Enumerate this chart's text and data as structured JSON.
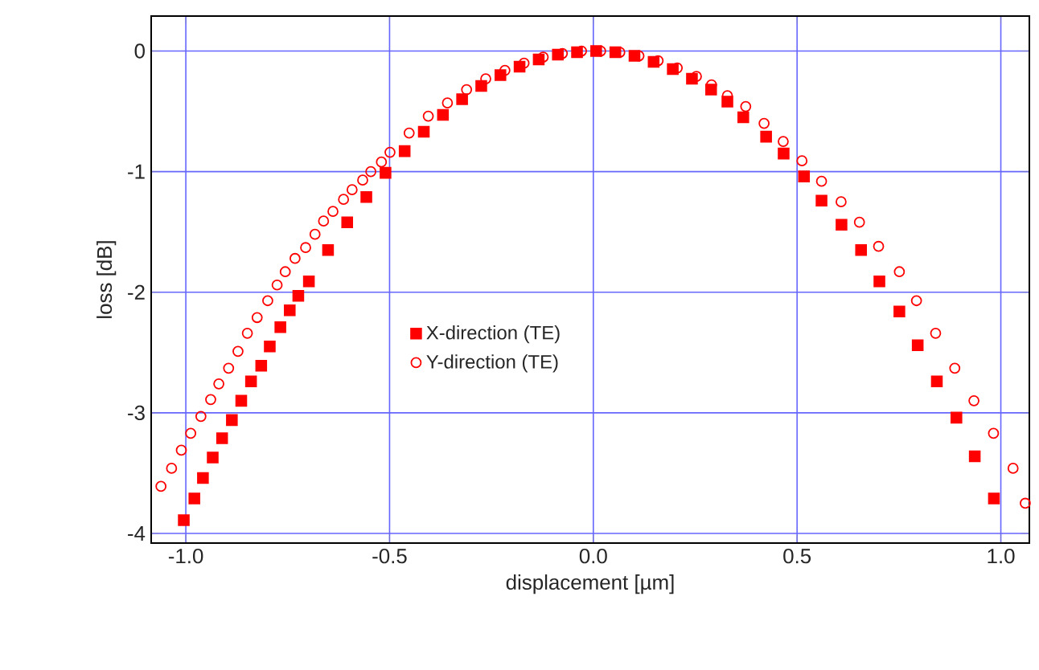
{
  "chart_data": {
    "type": "scatter",
    "xlabel": "displacement [µm]",
    "ylabel": "loss [dB]",
    "xlim": [
      -1.085,
      1.07
    ],
    "ylim": [
      -4.08,
      0.29
    ],
    "xticks": [
      {
        "value": -1,
        "label": "-1.0"
      },
      {
        "value": -0.5,
        "label": "-0.5"
      },
      {
        "value": 0,
        "label": "0.0"
      },
      {
        "value": 0.5,
        "label": "0.5"
      },
      {
        "value": 1,
        "label": "1.0"
      }
    ],
    "yticks": [
      -4,
      -3,
      -2,
      -1,
      0
    ],
    "grid": true,
    "legend": "center",
    "series": [
      {
        "name": "X-direction (TE)",
        "color": "#ff0000",
        "marker": "square",
        "x": [
          -1.005,
          -0.979,
          -0.958,
          -0.934,
          -0.911,
          -0.887,
          -0.864,
          -0.84,
          -0.815,
          -0.794,
          -0.768,
          -0.745,
          -0.724,
          -0.698,
          -0.651,
          -0.604,
          -0.557,
          -0.51,
          -0.463,
          -0.416,
          -0.369,
          -0.322,
          -0.275,
          -0.228,
          -0.181,
          -0.134,
          -0.087,
          -0.04,
          0.007,
          0.054,
          0.101,
          0.148,
          0.195,
          0.242,
          0.289,
          0.329,
          0.368,
          0.424,
          0.467,
          0.517,
          0.56,
          0.609,
          0.657,
          0.702,
          0.751,
          0.796,
          0.843,
          0.891,
          0.936,
          0.983
        ],
        "values": [
          -3.89,
          -3.71,
          -3.54,
          -3.37,
          -3.21,
          -3.06,
          -2.9,
          -2.74,
          -2.61,
          -2.45,
          -2.29,
          -2.15,
          -2.03,
          -1.91,
          -1.65,
          -1.42,
          -1.21,
          -1.01,
          -0.83,
          -0.67,
          -0.53,
          -0.4,
          -0.29,
          -0.2,
          -0.13,
          -0.07,
          -0.03,
          -0.01,
          0,
          -0.01,
          -0.04,
          -0.09,
          -0.15,
          -0.23,
          -0.32,
          -0.42,
          -0.55,
          -0.71,
          -0.85,
          -1.04,
          -1.24,
          -1.44,
          -1.65,
          -1.91,
          -2.16,
          -2.44,
          -2.74,
          -3.04,
          -3.36,
          -3.71
        ]
      },
      {
        "name": "Y-direction (TE)",
        "color": "#ff0000",
        "marker": "circle",
        "x": [
          -1.061,
          -1.035,
          -1.011,
          -0.988,
          -0.963,
          -0.939,
          -0.919,
          -0.895,
          -0.872,
          -0.849,
          -0.825,
          -0.799,
          -0.776,
          -0.756,
          -0.732,
          -0.706,
          -0.683,
          -0.662,
          -0.639,
          -0.613,
          -0.592,
          -0.566,
          -0.546,
          -0.52,
          -0.499,
          -0.452,
          -0.405,
          -0.358,
          -0.311,
          -0.264,
          -0.217,
          -0.17,
          -0.123,
          -0.076,
          -0.029,
          0.018,
          0.065,
          0.112,
          0.159,
          0.206,
          0.253,
          0.29,
          0.329,
          0.374,
          0.419,
          0.466,
          0.512,
          0.56,
          0.608,
          0.653,
          0.7,
          0.751,
          0.793,
          0.84,
          0.887,
          0.934,
          0.982,
          1.03,
          1.06
        ],
        "values": [
          -3.61,
          -3.46,
          -3.31,
          -3.17,
          -3.03,
          -2.89,
          -2.76,
          -2.63,
          -2.49,
          -2.34,
          -2.21,
          -2.07,
          -1.94,
          -1.83,
          -1.72,
          -1.63,
          -1.52,
          -1.41,
          -1.33,
          -1.23,
          -1.15,
          -1.07,
          -1.0,
          -0.92,
          -0.84,
          -0.68,
          -0.54,
          -0.43,
          -0.32,
          -0.23,
          -0.16,
          -0.1,
          -0.05,
          -0.02,
          0,
          0,
          -0.01,
          -0.04,
          -0.08,
          -0.14,
          -0.21,
          -0.28,
          -0.37,
          -0.46,
          -0.6,
          -0.75,
          -0.91,
          -1.08,
          -1.25,
          -1.42,
          -1.62,
          -1.83,
          -2.07,
          -2.34,
          -2.63,
          -2.9,
          -3.17,
          -3.46,
          -3.75
        ]
      }
    ]
  }
}
